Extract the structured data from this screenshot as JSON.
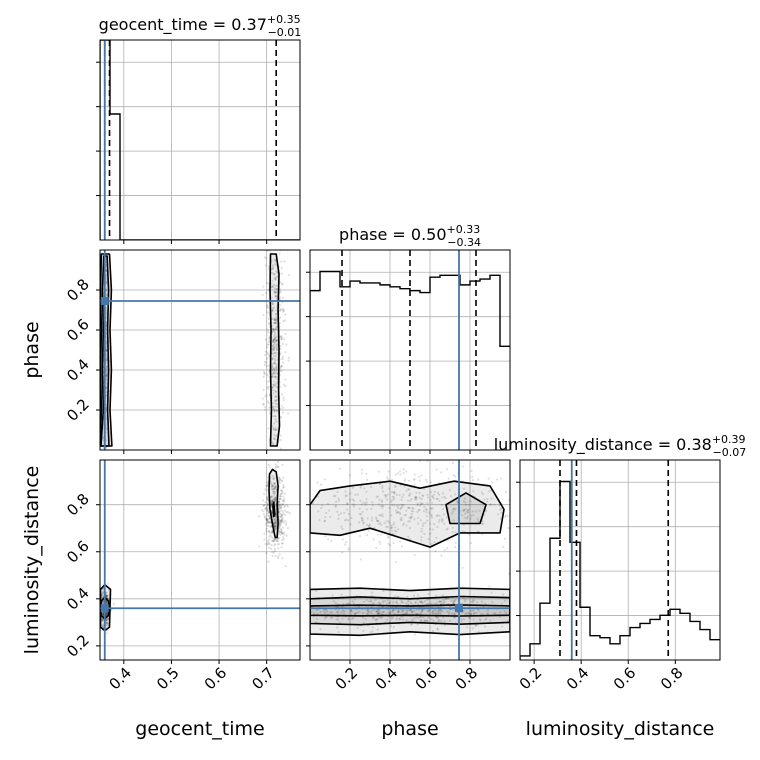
{
  "colors": {
    "truth": "#4477aa",
    "hist": "#000000",
    "grid": "#b0b0b0",
    "quantile": "#000000"
  },
  "chart_data": {
    "type": "corner",
    "parameters": [
      "geocent_time",
      "phase",
      "luminosity_distance"
    ],
    "ranges": {
      "geocent_time": [
        0.35,
        0.77
      ],
      "phase": [
        0.0,
        1.0
      ],
      "luminosity_distance": [
        0.14,
        0.99
      ]
    },
    "ticks": {
      "geocent_time": [
        "0.4",
        "0.5",
        "0.6",
        "0.7"
      ],
      "phase": [
        "0.2",
        "0.4",
        "0.6",
        "0.8"
      ],
      "luminosity_distance": [
        "0.2",
        "0.4",
        "0.6",
        "0.8"
      ]
    },
    "truths": {
      "geocent_time": 0.36,
      "phase": 0.745,
      "luminosity_distance": 0.36
    },
    "titles": [
      {
        "param": "geocent_time",
        "prefix": "geocent_time = ",
        "median": "0.37",
        "plus": "+0.35",
        "minus": "−0.01"
      },
      {
        "param": "phase",
        "prefix": "phase = ",
        "median": "0.50",
        "plus": "+0.33",
        "minus": "−0.34"
      },
      {
        "param": "luminosity_distance",
        "prefix": "luminosity_distance = ",
        "median": "0.38",
        "plus": "+0.39",
        "minus": "−0.07"
      }
    ],
    "quantiles": {
      "geocent_time": [
        0.36,
        0.37,
        0.72
      ],
      "phase": [
        0.16,
        0.5,
        0.83
      ],
      "luminosity_distance": [
        0.31,
        0.38,
        0.77
      ]
    },
    "histograms": {
      "geocent_time": {
        "edges": [
          0.35,
          0.371,
          0.392,
          0.413,
          0.434,
          0.455,
          0.476,
          0.497,
          0.518,
          0.539,
          0.56,
          0.581,
          0.602,
          0.623,
          0.644,
          0.665,
          0.686,
          0.707,
          0.728,
          0.749,
          0.77
        ],
        "counts": [
          1000,
          630,
          0,
          0,
          0,
          0,
          0,
          0,
          0,
          0,
          0,
          0,
          0,
          0,
          0,
          0.02,
          0.17,
          0.37,
          0.17,
          0.02
        ]
      },
      "phase": {
        "edges": [
          0.0,
          0.05,
          0.1,
          0.15,
          0.2,
          0.25,
          0.3,
          0.35,
          0.4,
          0.45,
          0.5,
          0.55,
          0.6,
          0.65,
          0.7,
          0.75,
          0.8,
          0.85,
          0.9,
          0.95,
          1.0
        ],
        "counts": [
          0.83,
          0.93,
          0.93,
          0.85,
          0.88,
          0.87,
          0.87,
          0.86,
          0.85,
          0.84,
          0.83,
          0.82,
          0.9,
          0.91,
          0.91,
          0.86,
          0.88,
          0.89,
          0.91,
          0.54
        ]
      },
      "luminosity_distance": {
        "edges": [
          0.14,
          0.1825,
          0.225,
          0.2675,
          0.31,
          0.3525,
          0.395,
          0.4375,
          0.48,
          0.5225,
          0.565,
          0.6075,
          0.65,
          0.6925,
          0.735,
          0.7775,
          0.82,
          0.8625,
          0.905,
          0.9475,
          0.99
        ],
        "counts": [
          0.02,
          0.08,
          0.28,
          0.6,
          0.88,
          0.58,
          0.26,
          0.12,
          0.11,
          0.08,
          0.12,
          0.16,
          0.18,
          0.2,
          0.22,
          0.25,
          0.23,
          0.19,
          0.15,
          0.1
        ]
      }
    },
    "scatter_regions": [
      {
        "x": "geocent_time",
        "y": "phase",
        "cx": 0.36,
        "cy": 0.5,
        "sx": 0.004,
        "sy": 0.28,
        "n": 380
      },
      {
        "x": "geocent_time",
        "y": "phase",
        "cx": 0.717,
        "cy": 0.5,
        "sx": 0.01,
        "sy": 0.28,
        "n": 520
      },
      {
        "x": "geocent_time",
        "y": "luminosity_distance",
        "cx": 0.36,
        "cy": 0.36,
        "sx": 0.006,
        "sy": 0.04,
        "n": 420
      },
      {
        "x": "geocent_time",
        "y": "luminosity_distance",
        "cx": 0.717,
        "cy": 0.77,
        "sx": 0.011,
        "sy": 0.08,
        "n": 520
      },
      {
        "x": "phase",
        "y": "luminosity_distance",
        "cx": 0.5,
        "cy": 0.35,
        "sx": 0.3,
        "sy": 0.035,
        "n": 650
      },
      {
        "x": "phase",
        "y": "luminosity_distance",
        "cx": 0.5,
        "cy": 0.78,
        "sx": 0.3,
        "sy": 0.08,
        "n": 550
      }
    ],
    "contours": [
      {
        "x": "geocent_time",
        "y": "phase",
        "points": [
          [
            0.352,
            0.02
          ],
          [
            0.357,
            0.2
          ],
          [
            0.355,
            0.4
          ],
          [
            0.357,
            0.6
          ],
          [
            0.355,
            0.8
          ],
          [
            0.358,
            0.97
          ],
          [
            0.365,
            0.97
          ],
          [
            0.368,
            0.8
          ],
          [
            0.366,
            0.6
          ],
          [
            0.368,
            0.4
          ],
          [
            0.366,
            0.2
          ],
          [
            0.369,
            0.02
          ]
        ]
      },
      {
        "x": "geocent_time",
        "y": "phase",
        "points": [
          [
            0.35,
            0.02
          ],
          [
            0.353,
            0.2
          ],
          [
            0.351,
            0.4
          ],
          [
            0.353,
            0.6
          ],
          [
            0.351,
            0.8
          ],
          [
            0.353,
            0.98
          ],
          [
            0.37,
            0.98
          ],
          [
            0.374,
            0.8
          ],
          [
            0.371,
            0.6
          ],
          [
            0.374,
            0.4
          ],
          [
            0.371,
            0.2
          ],
          [
            0.375,
            0.02
          ]
        ]
      },
      {
        "x": "geocent_time",
        "y": "phase",
        "points": [
          [
            0.708,
            0.02
          ],
          [
            0.71,
            0.2
          ],
          [
            0.708,
            0.4
          ],
          [
            0.709,
            0.6
          ],
          [
            0.707,
            0.8
          ],
          [
            0.708,
            0.98
          ],
          [
            0.72,
            0.98
          ],
          [
            0.726,
            0.88
          ],
          [
            0.724,
            0.7
          ],
          [
            0.726,
            0.5
          ],
          [
            0.725,
            0.3
          ],
          [
            0.727,
            0.12
          ],
          [
            0.722,
            0.02
          ]
        ]
      },
      {
        "x": "geocent_time",
        "y": "luminosity_distance",
        "points": [
          [
            0.352,
            0.39
          ],
          [
            0.352,
            0.33
          ],
          [
            0.36,
            0.315
          ],
          [
            0.368,
            0.33
          ],
          [
            0.368,
            0.39
          ],
          [
            0.36,
            0.405
          ]
        ]
      },
      {
        "x": "geocent_time",
        "y": "luminosity_distance",
        "points": [
          [
            0.351,
            0.44
          ],
          [
            0.351,
            0.28
          ],
          [
            0.36,
            0.265
          ],
          [
            0.37,
            0.28
          ],
          [
            0.372,
            0.44
          ],
          [
            0.36,
            0.46
          ]
        ]
      },
      {
        "x": "geocent_time",
        "y": "luminosity_distance",
        "points": [
          [
            0.706,
            0.93
          ],
          [
            0.705,
            0.86
          ],
          [
            0.707,
            0.78
          ],
          [
            0.712,
            0.72
          ],
          [
            0.718,
            0.66
          ],
          [
            0.722,
            0.66
          ],
          [
            0.724,
            0.72
          ],
          [
            0.722,
            0.8
          ],
          [
            0.724,
            0.88
          ],
          [
            0.72,
            0.94
          ],
          [
            0.712,
            0.95
          ]
        ]
      },
      {
        "x": "geocent_time",
        "y": "luminosity_distance",
        "points": [
          [
            0.713,
            0.79
          ],
          [
            0.715,
            0.75
          ],
          [
            0.717,
            0.76
          ],
          [
            0.715,
            0.81
          ]
        ]
      },
      {
        "x": "phase",
        "y": "luminosity_distance",
        "points": [
          [
            0.0,
            0.33
          ],
          [
            0.25,
            0.328
          ],
          [
            0.5,
            0.33
          ],
          [
            0.75,
            0.327
          ],
          [
            1.0,
            0.33
          ],
          [
            1.0,
            0.37
          ],
          [
            0.75,
            0.374
          ],
          [
            0.5,
            0.37
          ],
          [
            0.25,
            0.373
          ],
          [
            0.0,
            0.37
          ]
        ]
      },
      {
        "x": "phase",
        "y": "luminosity_distance",
        "points": [
          [
            0.0,
            0.295
          ],
          [
            0.25,
            0.29
          ],
          [
            0.5,
            0.3
          ],
          [
            0.75,
            0.292
          ],
          [
            1.0,
            0.3
          ],
          [
            1.0,
            0.405
          ],
          [
            0.75,
            0.41
          ],
          [
            0.5,
            0.4
          ],
          [
            0.25,
            0.408
          ],
          [
            0.0,
            0.4
          ]
        ]
      },
      {
        "x": "phase",
        "y": "luminosity_distance",
        "points": [
          [
            0.0,
            0.25
          ],
          [
            0.25,
            0.245
          ],
          [
            0.5,
            0.26
          ],
          [
            0.75,
            0.248
          ],
          [
            1.0,
            0.26
          ],
          [
            1.0,
            0.44
          ],
          [
            0.75,
            0.445
          ],
          [
            0.5,
            0.435
          ],
          [
            0.25,
            0.445
          ],
          [
            0.0,
            0.44
          ]
        ]
      },
      {
        "x": "phase",
        "y": "luminosity_distance",
        "points": [
          [
            0.0,
            0.68
          ],
          [
            0.15,
            0.67
          ],
          [
            0.3,
            0.7
          ],
          [
            0.45,
            0.66
          ],
          [
            0.6,
            0.62
          ],
          [
            0.75,
            0.68
          ],
          [
            0.95,
            0.68
          ],
          [
            0.97,
            0.78
          ],
          [
            0.9,
            0.88
          ],
          [
            0.72,
            0.9
          ],
          [
            0.55,
            0.87
          ],
          [
            0.4,
            0.9
          ],
          [
            0.2,
            0.88
          ],
          [
            0.05,
            0.86
          ],
          [
            0.0,
            0.8
          ]
        ]
      },
      {
        "x": "phase",
        "y": "luminosity_distance",
        "points": [
          [
            0.7,
            0.72
          ],
          [
            0.85,
            0.72
          ],
          [
            0.88,
            0.8
          ],
          [
            0.78,
            0.85
          ],
          [
            0.68,
            0.8
          ]
        ]
      }
    ],
    "grid": true
  }
}
